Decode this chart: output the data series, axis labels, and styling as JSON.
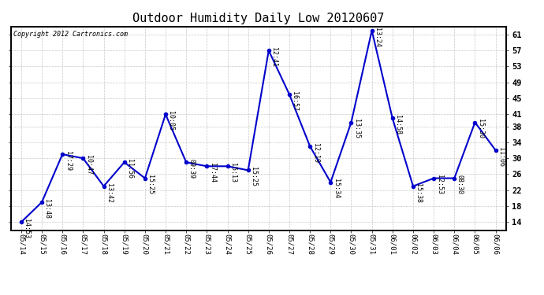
{
  "title": "Outdoor Humidity Daily Low 20120607",
  "copyright": "Copyright 2012 Cartronics.com",
  "x_labels": [
    "05/14",
    "05/15",
    "05/16",
    "05/17",
    "05/18",
    "05/19",
    "05/20",
    "05/21",
    "05/22",
    "05/23",
    "05/24",
    "05/25",
    "05/26",
    "05/27",
    "05/28",
    "05/29",
    "05/30",
    "05/31",
    "06/01",
    "06/02",
    "06/03",
    "06/04",
    "06/05",
    "06/06"
  ],
  "y_values": [
    14,
    19,
    31,
    30,
    23,
    29,
    25,
    41,
    29,
    28,
    28,
    27,
    57,
    46,
    33,
    24,
    39,
    62,
    40,
    23,
    25,
    25,
    39,
    32
  ],
  "point_labels": [
    "14:53",
    "13:48",
    "17:29",
    "10:47",
    "13:42",
    "11:56",
    "15:25",
    "10:05",
    "09:39",
    "17:44",
    "15:13",
    "15:25",
    "12:41",
    "16:57",
    "12:19",
    "15:34",
    "13:35",
    "13:24",
    "14:58",
    "15:38",
    "12:53",
    "08:30",
    "15:30",
    "11:06"
  ],
  "line_color": "#0000cc",
  "marker_color": "#0000cc",
  "bg_color": "#ffffff",
  "grid_color": "#c8c8c8",
  "title_fontsize": 11,
  "label_fontsize": 7,
  "ylim_min": 12,
  "ylim_max": 63,
  "yticks": [
    14,
    18,
    22,
    26,
    30,
    34,
    38,
    41,
    45,
    49,
    53,
    57,
    61
  ]
}
